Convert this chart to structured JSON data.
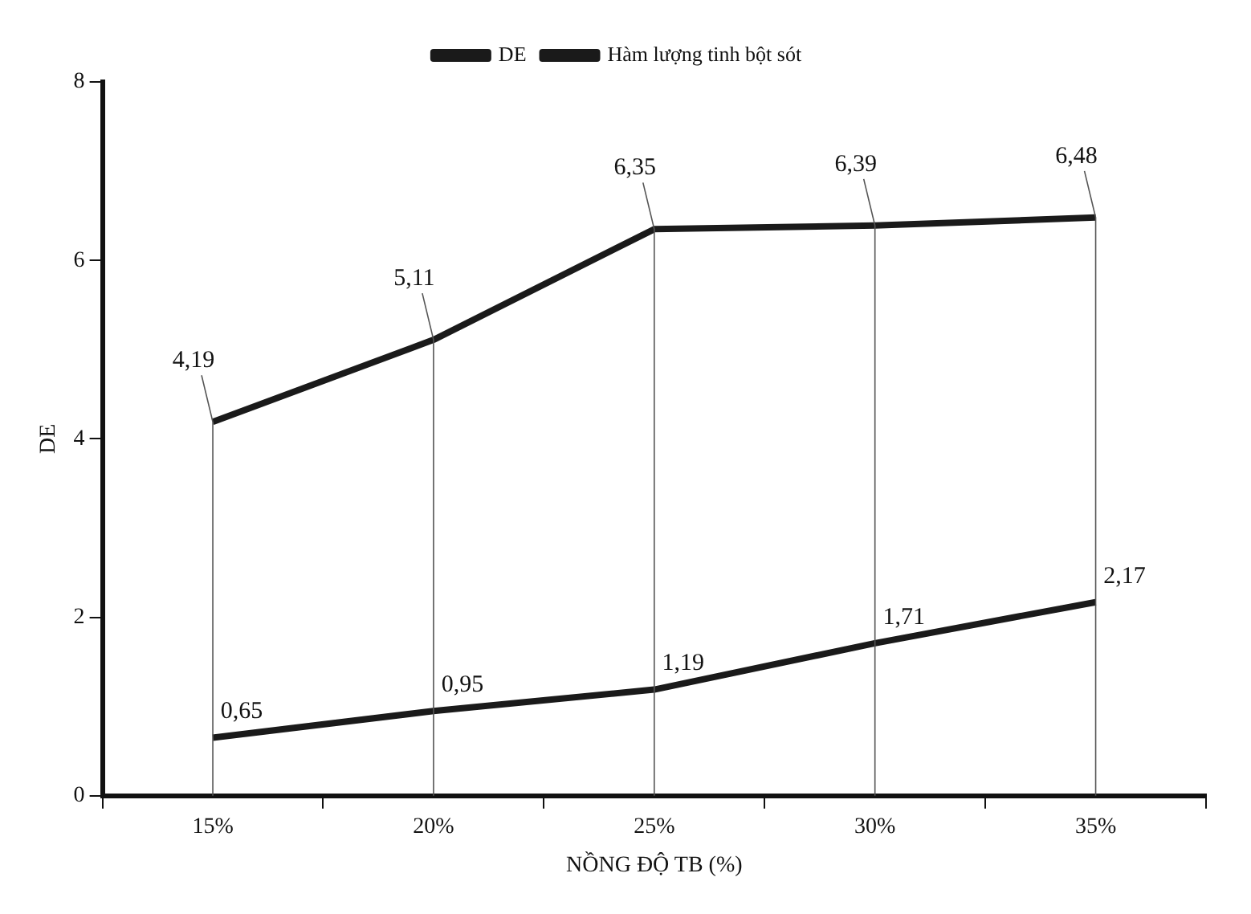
{
  "chart_data": {
    "type": "line",
    "xlabel": "NỒNG ĐỘ TB (%)",
    "ylabel": "DE",
    "categories": [
      "15%",
      "20%",
      "25%",
      "30%",
      "35%"
    ],
    "series": [
      {
        "name": "DE",
        "color": "#1a1a1a",
        "values": [
          4.19,
          5.11,
          6.35,
          6.39,
          6.48
        ],
        "value_labels": [
          "4,19",
          "5,11",
          "6,35",
          "6,39",
          "6,48"
        ]
      },
      {
        "name": "Hàm lượng tinh bột sót",
        "color": "#1a1a1a",
        "values": [
          0.65,
          0.95,
          1.19,
          1.71,
          2.17
        ],
        "value_labels": [
          "0,65",
          "0,95",
          "1,19",
          "1,71",
          "2,17"
        ]
      }
    ],
    "ylim": [
      0,
      8
    ],
    "yticks": [
      0,
      2,
      4,
      6,
      8
    ],
    "grid": false,
    "legend": "top",
    "marker": "none",
    "line_style": "solid"
  }
}
